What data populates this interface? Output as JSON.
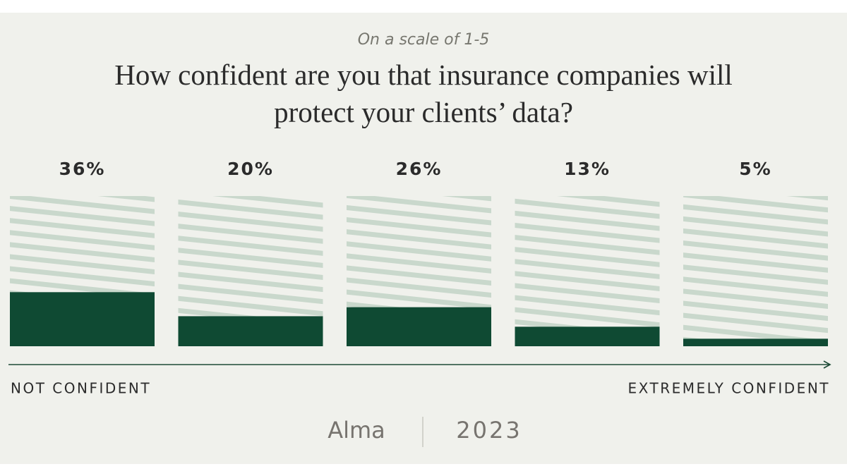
{
  "chart_data": {
    "type": "bar",
    "subtitle": "On a scale of 1-5",
    "title": "How confident are you that insurance companies will protect your clients’ data?",
    "categories": [
      null,
      null,
      null,
      null,
      null
    ],
    "values": [
      36,
      20,
      26,
      13,
      5
    ],
    "value_labels": [
      "36%",
      "20%",
      "26%",
      "13%",
      "5%"
    ],
    "color": "#0f4a33",
    "ylim": [
      0,
      100
    ],
    "x_label_left": "NOT CONFIDENT",
    "x_label_right": "EXTREMELY CONFIDENT",
    "brand": "Alma",
    "year": "2023"
  }
}
